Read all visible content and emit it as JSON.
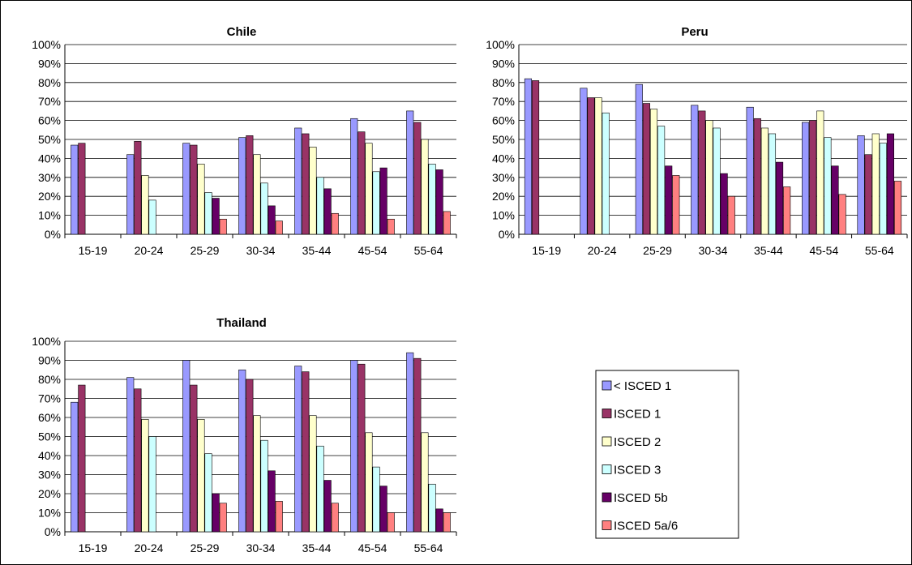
{
  "chart_data": [
    {
      "type": "bar",
      "title": "Chile",
      "categories": [
        "15-19",
        "20-24",
        "25-29",
        "30-34",
        "35-44",
        "45-54",
        "55-64"
      ],
      "ylim": [
        0,
        100
      ],
      "ytick_labels": [
        "0%",
        "10%",
        "20%",
        "30%",
        "40%",
        "50%",
        "60%",
        "70%",
        "80%",
        "90%",
        "100%"
      ],
      "grid": true,
      "series": [
        {
          "name": "< ISCED 1",
          "values": [
            47,
            42,
            48,
            51,
            56,
            61,
            65
          ]
        },
        {
          "name": "ISCED 1",
          "values": [
            48,
            49,
            47,
            52,
            53,
            54,
            59
          ]
        },
        {
          "name": "ISCED 2",
          "values": [
            null,
            31,
            37,
            42,
            46,
            48,
            50
          ]
        },
        {
          "name": "ISCED 3",
          "values": [
            null,
            18,
            22,
            27,
            30,
            33,
            37
          ]
        },
        {
          "name": "ISCED 5b",
          "values": [
            null,
            null,
            19,
            15,
            24,
            35,
            34
          ]
        },
        {
          "name": "ISCED 5a/6",
          "values": [
            null,
            null,
            8,
            7,
            11,
            8,
            12
          ]
        }
      ]
    },
    {
      "type": "bar",
      "title": "Peru",
      "categories": [
        "15-19",
        "20-24",
        "25-29",
        "30-34",
        "35-44",
        "45-54",
        "55-64"
      ],
      "ylim": [
        0,
        100
      ],
      "ytick_labels": [
        "0%",
        "10%",
        "20%",
        "30%",
        "40%",
        "50%",
        "60%",
        "70%",
        "80%",
        "90%",
        "100%"
      ],
      "grid": true,
      "series": [
        {
          "name": "< ISCED 1",
          "values": [
            82,
            77,
            79,
            68,
            67,
            59,
            52
          ]
        },
        {
          "name": "ISCED 1",
          "values": [
            81,
            72,
            69,
            65,
            61,
            60,
            42
          ]
        },
        {
          "name": "ISCED 2",
          "values": [
            null,
            72,
            66,
            60,
            56,
            65,
            53
          ]
        },
        {
          "name": "ISCED 3",
          "values": [
            null,
            64,
            57,
            56,
            53,
            51,
            48
          ]
        },
        {
          "name": "ISCED 5b",
          "values": [
            null,
            null,
            36,
            32,
            38,
            36,
            53
          ]
        },
        {
          "name": "ISCED 5a/6",
          "values": [
            null,
            null,
            31,
            20,
            25,
            21,
            28
          ]
        }
      ]
    },
    {
      "type": "bar",
      "title": "Thailand",
      "categories": [
        "15-19",
        "20-24",
        "25-29",
        "30-34",
        "35-44",
        "45-54",
        "55-64"
      ],
      "ylim": [
        0,
        100
      ],
      "ytick_labels": [
        "0%",
        "10%",
        "20%",
        "30%",
        "40%",
        "50%",
        "60%",
        "70%",
        "80%",
        "90%",
        "100%"
      ],
      "grid": true,
      "series": [
        {
          "name": "< ISCED 1",
          "values": [
            68,
            81,
            90,
            85,
            87,
            90,
            94
          ]
        },
        {
          "name": "ISCED 1",
          "values": [
            77,
            75,
            77,
            80,
            84,
            88,
            91
          ]
        },
        {
          "name": "ISCED 2",
          "values": [
            null,
            59,
            59,
            61,
            61,
            52,
            52
          ]
        },
        {
          "name": "ISCED 3",
          "values": [
            null,
            50,
            41,
            48,
            45,
            34,
            25
          ]
        },
        {
          "name": "ISCED 5b",
          "values": [
            null,
            null,
            20,
            32,
            27,
            24,
            12
          ]
        },
        {
          "name": "ISCED 5a/6",
          "values": [
            null,
            null,
            15,
            16,
            15,
            10,
            10
          ]
        }
      ]
    }
  ],
  "legend": {
    "placement": "bottom-right",
    "entries": [
      "< ISCED 1",
      "ISCED 1",
      "ISCED 2",
      "ISCED 3",
      "ISCED 5b",
      "ISCED 5a/6"
    ]
  },
  "series_colors": [
    "#9999FF",
    "#993366",
    "#FFFFCC",
    "#CCFFFF",
    "#660066",
    "#FF8080"
  ]
}
